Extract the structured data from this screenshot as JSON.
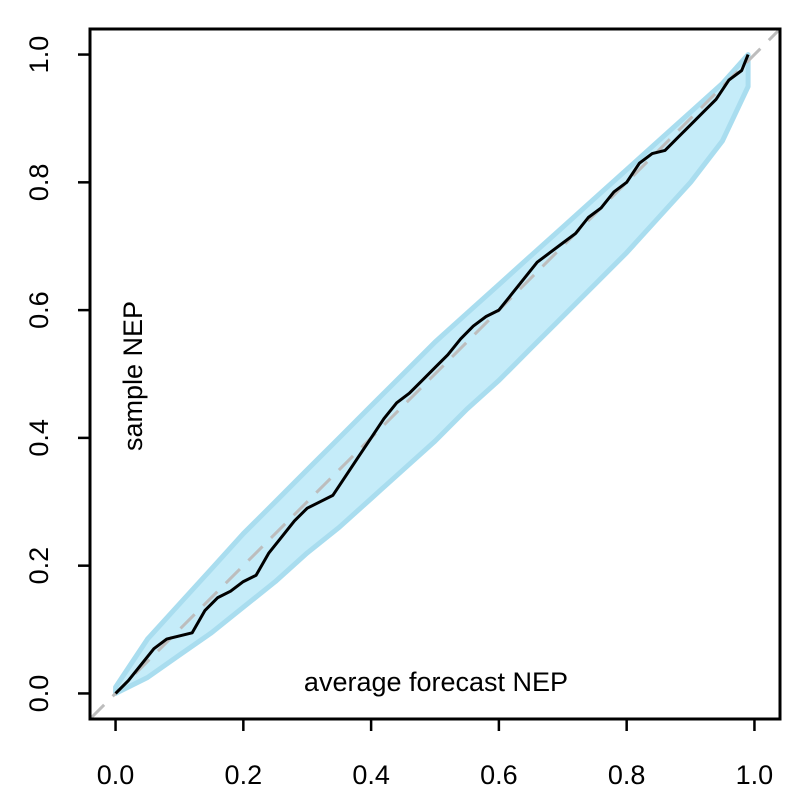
{
  "chart_data": {
    "type": "line",
    "xlabel": "average forecast NEP",
    "ylabel": "sample NEP",
    "xlim": [
      -0.04,
      1.04
    ],
    "ylim": [
      -0.04,
      1.04
    ],
    "x_ticks": [
      "0.0",
      "0.2",
      "0.4",
      "0.6",
      "0.8",
      "1.0"
    ],
    "y_ticks": [
      "0.0",
      "0.2",
      "0.4",
      "0.6",
      "0.8",
      "1.0"
    ],
    "grid": false,
    "colors": {
      "band_fill": "#c5ecf9",
      "band_edge": "#a9ddef",
      "reference_line": "#bdbdbd",
      "series_line": "#000000"
    },
    "reference_line": {
      "style": "dashed",
      "from": [
        -0.04,
        -0.04
      ],
      "to": [
        1.04,
        1.04
      ]
    },
    "consistency_band": {
      "x": [
        0.0,
        0.05,
        0.1,
        0.15,
        0.2,
        0.25,
        0.3,
        0.35,
        0.4,
        0.45,
        0.5,
        0.55,
        0.6,
        0.65,
        0.7,
        0.75,
        0.8,
        0.85,
        0.9,
        0.95,
        0.99
      ],
      "lower": [
        0.0,
        0.025,
        0.06,
        0.095,
        0.135,
        0.175,
        0.22,
        0.26,
        0.305,
        0.35,
        0.395,
        0.445,
        0.49,
        0.54,
        0.59,
        0.64,
        0.69,
        0.745,
        0.8,
        0.865,
        0.95
      ],
      "upper": [
        0.01,
        0.085,
        0.14,
        0.195,
        0.25,
        0.3,
        0.35,
        0.4,
        0.45,
        0.5,
        0.55,
        0.595,
        0.64,
        0.685,
        0.73,
        0.775,
        0.82,
        0.865,
        0.91,
        0.955,
        1.0
      ]
    },
    "series": [
      {
        "x": [
          0.0,
          0.02,
          0.04,
          0.06,
          0.08,
          0.1,
          0.12,
          0.14,
          0.16,
          0.18,
          0.2,
          0.22,
          0.24,
          0.26,
          0.28,
          0.3,
          0.32,
          0.34,
          0.36,
          0.38,
          0.4,
          0.42,
          0.44,
          0.46,
          0.48,
          0.5,
          0.52,
          0.54,
          0.56,
          0.58,
          0.6,
          0.62,
          0.64,
          0.66,
          0.68,
          0.7,
          0.72,
          0.74,
          0.76,
          0.78,
          0.8,
          0.82,
          0.84,
          0.86,
          0.88,
          0.9,
          0.92,
          0.94,
          0.96,
          0.98,
          0.99
        ],
        "y": [
          0.0,
          0.02,
          0.045,
          0.07,
          0.085,
          0.09,
          0.095,
          0.13,
          0.15,
          0.16,
          0.175,
          0.185,
          0.22,
          0.245,
          0.27,
          0.29,
          0.3,
          0.31,
          0.34,
          0.37,
          0.4,
          0.43,
          0.455,
          0.47,
          0.49,
          0.51,
          0.53,
          0.555,
          0.575,
          0.59,
          0.6,
          0.625,
          0.65,
          0.675,
          0.69,
          0.705,
          0.72,
          0.745,
          0.76,
          0.785,
          0.8,
          0.83,
          0.845,
          0.85,
          0.87,
          0.89,
          0.91,
          0.93,
          0.96,
          0.975,
          1.0
        ]
      }
    ]
  }
}
